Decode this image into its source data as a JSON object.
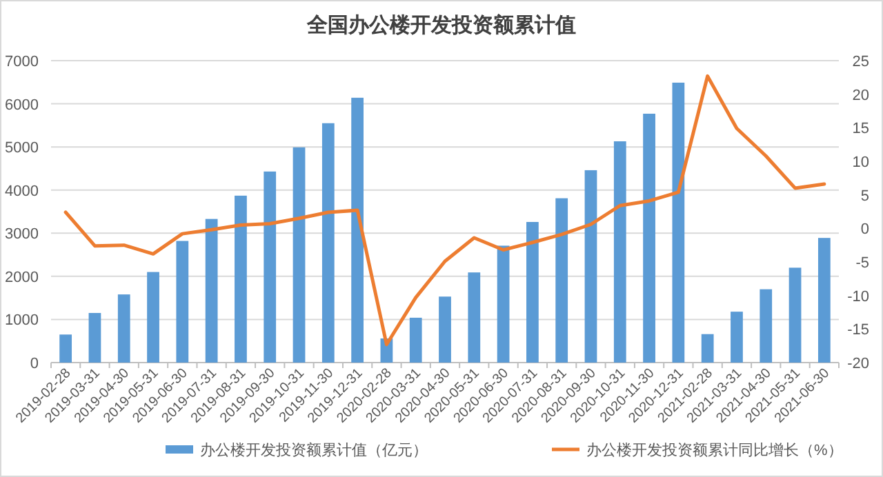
{
  "chart_data": {
    "type": "bar",
    "title": "全国办公楼开发投资额累计值",
    "categories": [
      "2019-02-28",
      "2019-03-31",
      "2019-04-30",
      "2019-05-31",
      "2019-06-30",
      "2019-07-31",
      "2019-08-31",
      "2019-09-30",
      "2019-10-31",
      "2019-11-30",
      "2019-12-31",
      "2020-02-28",
      "2020-03-31",
      "2020-04-30",
      "2020-05-31",
      "2020-06-30",
      "2020-07-31",
      "2020-08-31",
      "2020-09-30",
      "2020-10-31",
      "2020-11-30",
      "2020-12-31",
      "2021-02-28",
      "2021-03-31",
      "2021-04-30",
      "2021-05-31",
      "2021-06-30"
    ],
    "series": [
      {
        "name": "办公楼开发投资额累计值（亿元）",
        "color": "#5b9bd5",
        "values": [
          650,
          1150,
          1580,
          2100,
          2820,
          3330,
          3870,
          4430,
          4990,
          5550,
          6140,
          560,
          1040,
          1530,
          2090,
          2710,
          3260,
          3810,
          4460,
          5130,
          5770,
          6490,
          660,
          1180,
          1700,
          2200,
          2890
        ]
      },
      {
        "name": "办公楼开发投资额累计同比增长（%）",
        "type": "line",
        "axis": "y2",
        "color": "#ed7d31",
        "values": [
          2.4,
          -2.6,
          -2.5,
          -3.8,
          -0.8,
          -0.2,
          0.5,
          0.7,
          1.5,
          2.4,
          2.7,
          -17.3,
          -10.3,
          -4.9,
          -1.4,
          -3.2,
          -2.1,
          -0.9,
          0.6,
          3.4,
          4.1,
          5.4,
          22.7,
          14.9,
          10.8,
          6.0,
          6.6
        ]
      }
    ],
    "ylim": [
      0,
      7000
    ],
    "yticks": [
      0,
      1000,
      2000,
      3000,
      4000,
      5000,
      6000,
      7000
    ],
    "y2lim": [
      -20,
      25
    ],
    "y2ticks": [
      -20,
      -15,
      -10,
      -5,
      0,
      5,
      10,
      15,
      20,
      25
    ],
    "grid": "y",
    "legend": "bottom"
  }
}
